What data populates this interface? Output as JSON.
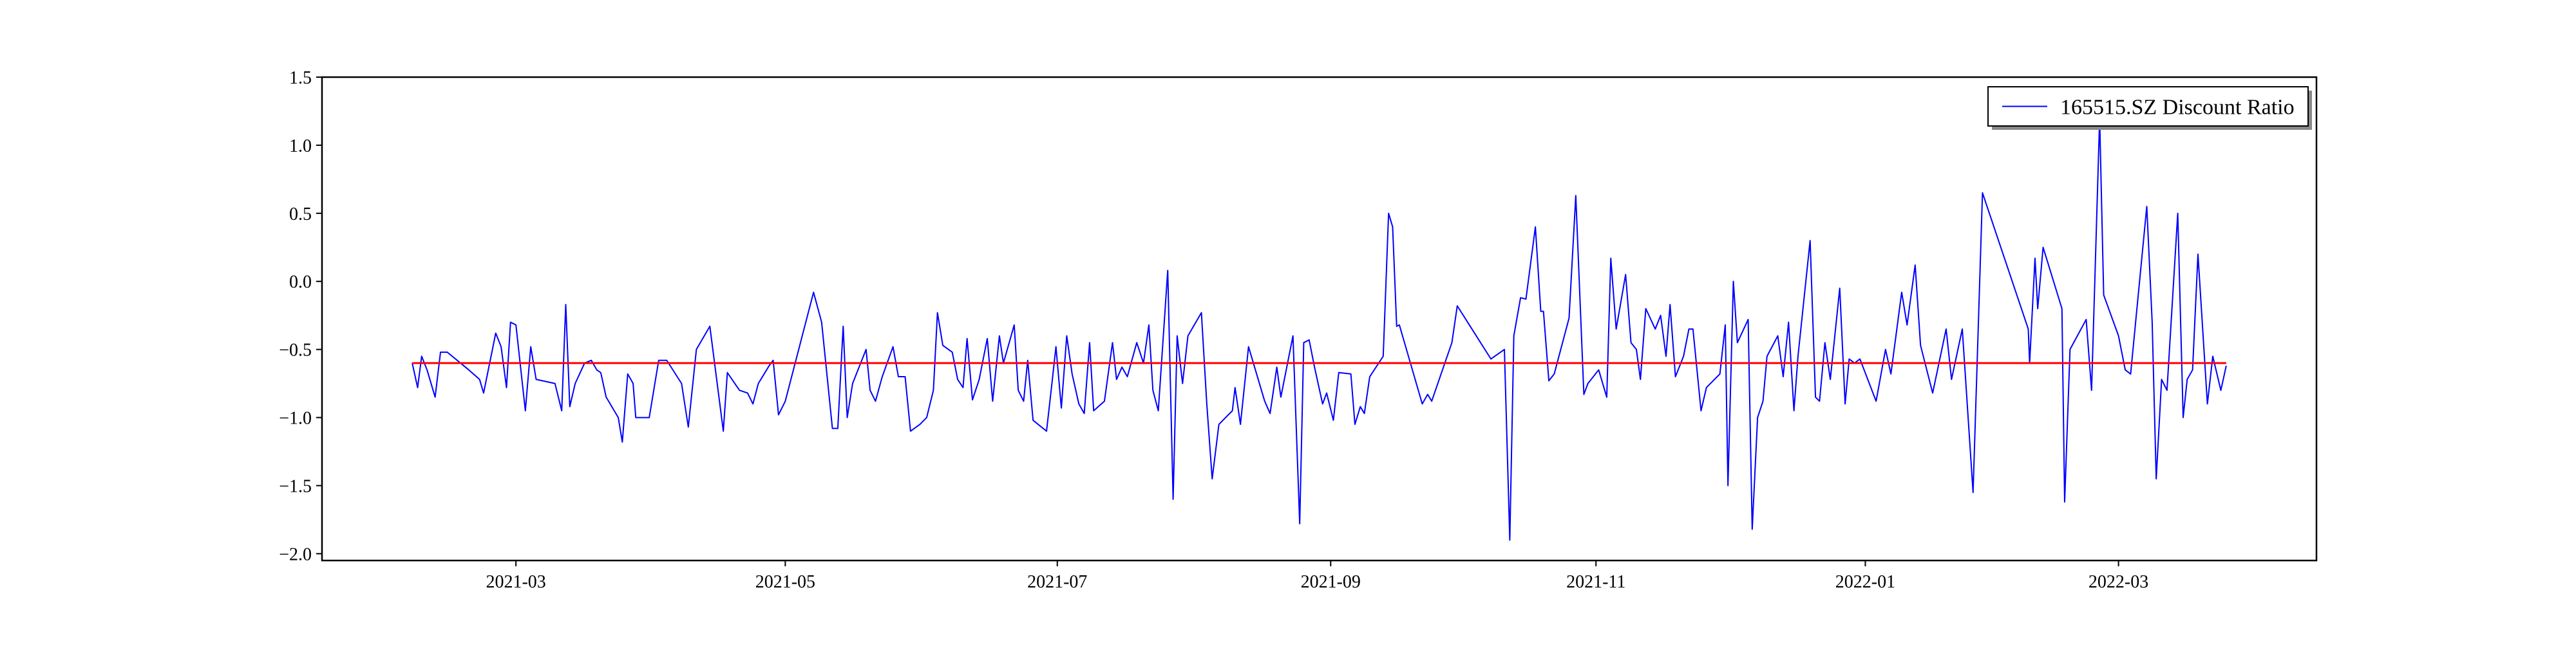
{
  "chart_data": {
    "type": "line",
    "series": [
      {
        "name": "165515.SZ Discount Ratio",
        "color": "#0000ff",
        "x": [
          1.23,
          1.27,
          1.3,
          1.34,
          1.4,
          1.44,
          1.49,
          1.65,
          1.73,
          1.76,
          1.85,
          1.89,
          1.93,
          1.96,
          2.0,
          2.07,
          2.11,
          2.15,
          2.29,
          2.34,
          2.37,
          2.4,
          2.44,
          2.51,
          2.56,
          2.6,
          2.63,
          2.67,
          2.76,
          2.79,
          2.83,
          2.87,
          2.89,
          2.99,
          3.06,
          3.12,
          3.23,
          3.28,
          3.34,
          3.44,
          3.54,
          3.57,
          3.66,
          3.72,
          3.76,
          3.8,
          3.88,
          3.91,
          3.95,
          4.0,
          4.21,
          4.27,
          4.35,
          4.39,
          4.43,
          4.46,
          4.5,
          4.6,
          4.63,
          4.67,
          4.72,
          4.8,
          4.84,
          4.89,
          4.93,
          5.0,
          5.05,
          5.1,
          5.13,
          5.17,
          5.24,
          5.28,
          5.32,
          5.35,
          5.39,
          5.44,
          5.5,
          5.54,
          5.59,
          5.62,
          5.7,
          5.73,
          5.77,
          5.8,
          5.84,
          5.94,
          5.98,
          6.01,
          6.05,
          6.09,
          6.13,
          6.18,
          6.22,
          6.26,
          6.29,
          6.37,
          6.43,
          6.46,
          6.5,
          6.54,
          6.61,
          6.66,
          6.7,
          6.73,
          6.77,
          6.84,
          6.88,
          6.91,
          6.95,
          6.99,
          7.09,
          7.13,
          7.17,
          7.22,
          7.32,
          7.34,
          7.38,
          7.44,
          7.56,
          7.6,
          7.65,
          7.68,
          7.77,
          7.82,
          7.85,
          7.89,
          7.93,
          7.99,
          8.02,
          8.07,
          8.11,
          8.2,
          8.23,
          8.27,
          8.3,
          8.34,
          8.44,
          8.48,
          8.51,
          8.54,
          8.56,
          8.73,
          8.77,
          8.8,
          8.95,
          8.99,
          9.24,
          9.34,
          9.38,
          9.41,
          9.46,
          9.5,
          9.57,
          9.61,
          9.63,
          9.67,
          9.71,
          9.82,
          9.87,
          9.93,
          9.96,
          10.04,
          10.1,
          10.13,
          10.17,
          10.24,
          10.28,
          10.32,
          10.35,
          10.39,
          10.46,
          10.5,
          10.54,
          10.57,
          10.61,
          10.67,
          10.71,
          10.74,
          10.8,
          10.84,
          10.94,
          10.98,
          11.0,
          11.04,
          11.07,
          11.15,
          11.18,
          11.22,
          11.26,
          11.29,
          11.37,
          11.41,
          11.45,
          11.49,
          11.52,
          11.61,
          11.65,
          11.68,
          11.72,
          11.76,
          11.83,
          11.87,
          11.9,
          11.94,
          11.98,
          12.1,
          12.17,
          12.21,
          12.29,
          12.33,
          12.39,
          12.43,
          12.52,
          12.62,
          12.66,
          12.74,
          12.82,
          12.89,
          13.23,
          13.24,
          13.28,
          13.3,
          13.34,
          13.48,
          13.5,
          13.54,
          13.66,
          13.7,
          13.76,
          13.79,
          13.9,
          13.95,
          13.99,
          14.11,
          14.15,
          14.18,
          14.22,
          14.26,
          14.34,
          14.38,
          14.41,
          14.45,
          14.49,
          14.56,
          14.6,
          14.66,
          14.7
        ],
        "values": [
          -0.6,
          -0.78,
          -0.55,
          -0.65,
          -0.85,
          -0.52,
          -0.52,
          -0.65,
          -0.72,
          -0.82,
          -0.38,
          -0.48,
          -0.78,
          -0.3,
          -0.32,
          -0.95,
          -0.48,
          -0.72,
          -0.75,
          -0.95,
          -0.17,
          -0.92,
          -0.75,
          -0.6,
          -0.58,
          -0.65,
          -0.67,
          -0.85,
          -1.0,
          -1.18,
          -0.68,
          -0.75,
          -1.0,
          -1.0,
          -0.58,
          -0.58,
          -0.75,
          -1.07,
          -0.5,
          -0.33,
          -1.1,
          -0.67,
          -0.8,
          -0.82,
          -0.9,
          -0.75,
          -0.62,
          -0.58,
          -0.98,
          -0.88,
          -0.08,
          -0.3,
          -1.08,
          -1.08,
          -0.33,
          -1.0,
          -0.75,
          -0.5,
          -0.8,
          -0.88,
          -0.7,
          -0.48,
          -0.7,
          -0.7,
          -1.1,
          -1.05,
          -1.0,
          -0.8,
          -0.23,
          -0.47,
          -0.52,
          -0.72,
          -0.78,
          -0.42,
          -0.87,
          -0.72,
          -0.42,
          -0.88,
          -0.4,
          -0.6,
          -0.32,
          -0.8,
          -0.88,
          -0.58,
          -1.02,
          -1.1,
          -0.75,
          -0.48,
          -0.93,
          -0.4,
          -0.68,
          -0.9,
          -0.97,
          -0.45,
          -0.95,
          -0.88,
          -0.45,
          -0.72,
          -0.63,
          -0.7,
          -0.45,
          -0.6,
          -0.32,
          -0.8,
          -0.95,
          0.08,
          -1.6,
          -0.4,
          -0.75,
          -0.4,
          -0.23,
          -0.9,
          -1.45,
          -1.05,
          -0.95,
          -0.78,
          -1.05,
          -0.48,
          -0.88,
          -0.97,
          -0.63,
          -0.85,
          -0.4,
          -1.78,
          -0.45,
          -0.43,
          -0.63,
          -0.9,
          -0.82,
          -1.02,
          -0.67,
          -0.68,
          -1.05,
          -0.92,
          -0.97,
          -0.7,
          -0.55,
          0.5,
          0.4,
          -0.33,
          -0.32,
          -0.9,
          -0.83,
          -0.88,
          -0.45,
          -0.18,
          -0.57,
          -0.5,
          -1.9,
          -0.4,
          -0.12,
          -0.13,
          0.4,
          -0.22,
          -0.22,
          -0.73,
          -0.68,
          -0.27,
          0.63,
          -0.83,
          -0.75,
          -0.65,
          -0.85,
          0.17,
          -0.35,
          0.05,
          -0.45,
          -0.5,
          -0.72,
          -0.2,
          -0.35,
          -0.25,
          -0.55,
          -0.17,
          -0.7,
          -0.55,
          -0.35,
          -0.35,
          -0.95,
          -0.78,
          -0.68,
          -0.32,
          -1.5,
          0.0,
          -0.45,
          -0.28,
          -1.82,
          -1.0,
          -0.88,
          -0.55,
          -0.4,
          -0.7,
          -0.3,
          -0.95,
          -0.55,
          0.3,
          -0.85,
          -0.88,
          -0.45,
          -0.72,
          -0.05,
          -0.9,
          -0.57,
          -0.6,
          -0.57,
          -0.88,
          -0.5,
          -0.68,
          -0.08,
          -0.32,
          0.12,
          -0.47,
          -0.82,
          -0.35,
          -0.72,
          -0.35,
          -1.55,
          0.65,
          -0.35,
          -0.6,
          0.17,
          -0.2,
          0.25,
          -0.2,
          -1.62,
          -0.5,
          -0.28,
          -0.8,
          1.2,
          -0.1,
          -0.4,
          -0.65,
          -0.68,
          0.55,
          -0.3,
          -1.45,
          -0.72,
          -0.8,
          0.5,
          -1.0,
          -0.72,
          -0.65,
          0.2,
          -0.9,
          -0.55,
          -0.8,
          -0.62
        ]
      }
    ],
    "hline": {
      "y": -0.6,
      "color": "#ff0000"
    },
    "xlim": [
      0.56,
      15.37
    ],
    "xticks": [
      {
        "value": 2.0,
        "label": "2021-03"
      },
      {
        "value": 4.0,
        "label": "2021-05"
      },
      {
        "value": 6.02,
        "label": "2021-07"
      },
      {
        "value": 8.05,
        "label": "2021-09"
      },
      {
        "value": 10.02,
        "label": "2021-11"
      },
      {
        "value": 12.02,
        "label": "2022-01"
      },
      {
        "value": 13.9,
        "label": "2022-03"
      }
    ],
    "ylim": [
      -2.05,
      1.5
    ],
    "yticks": [
      {
        "value": -2.0,
        "label": "−2.0"
      },
      {
        "value": -1.5,
        "label": "−1.5"
      },
      {
        "value": -1.0,
        "label": "−1.0"
      },
      {
        "value": -0.5,
        "label": "−0.5"
      },
      {
        "value": 0.0,
        "label": "0.0"
      },
      {
        "value": 0.5,
        "label": "0.5"
      },
      {
        "value": 1.0,
        "label": "1.0"
      },
      {
        "value": 1.5,
        "label": "1.5"
      }
    ],
    "legend": "upper right",
    "grid": false
  }
}
